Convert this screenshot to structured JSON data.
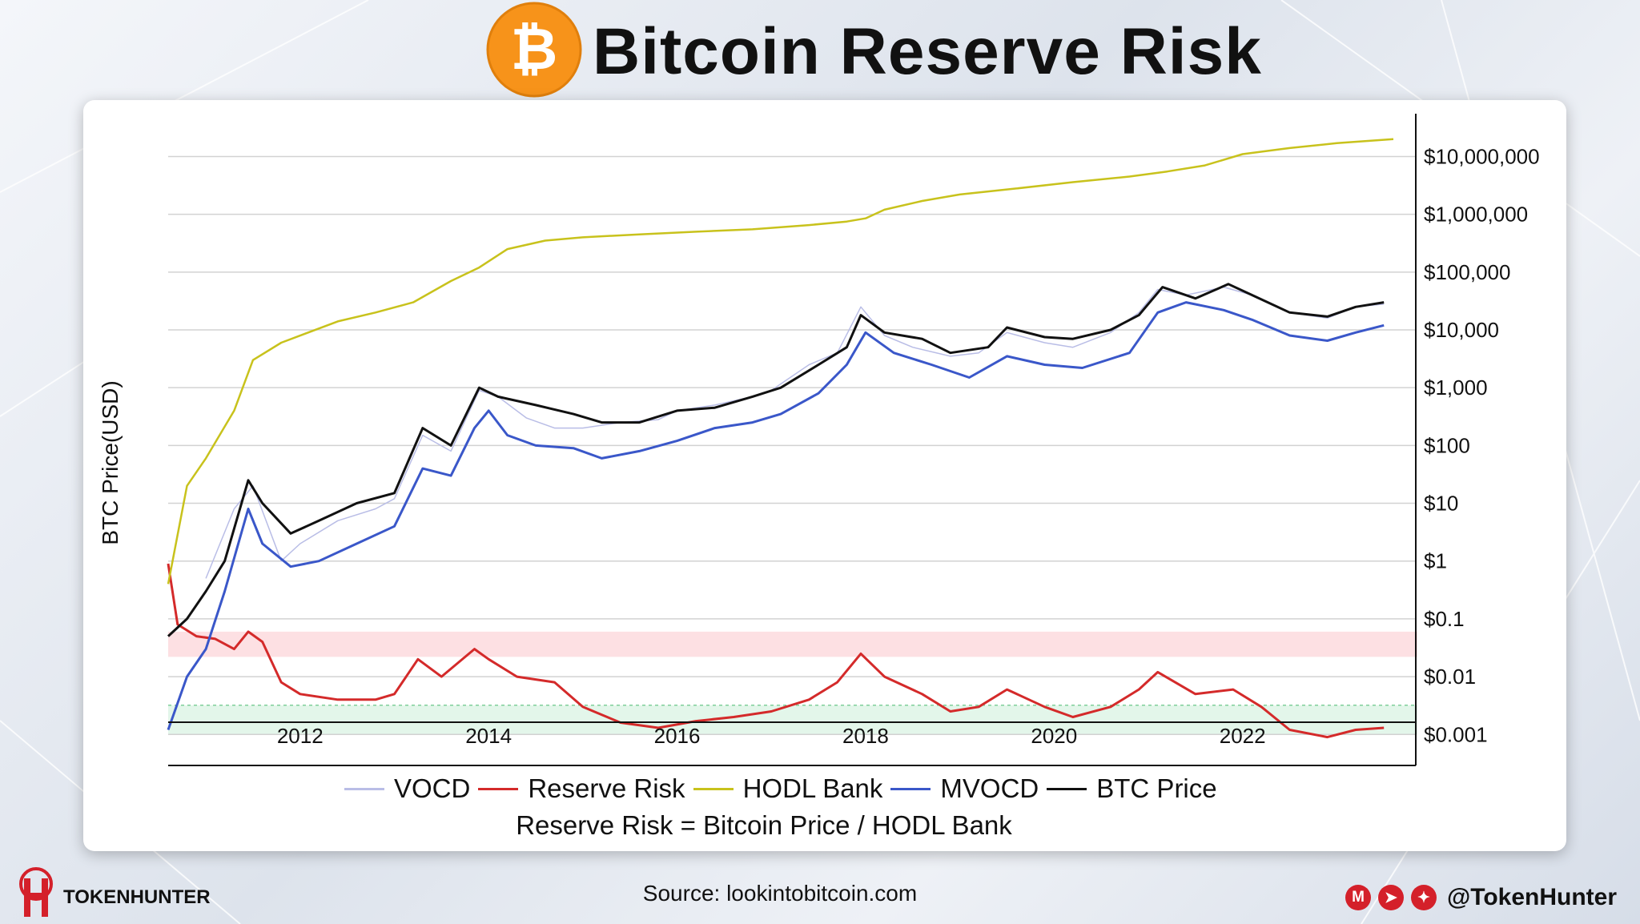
{
  "header": {
    "title": "Bitcoin Reserve Risk",
    "logo_icon": "bitcoin-icon",
    "logo_symbol": "₿"
  },
  "chart_data": {
    "type": "line",
    "ylabel": "BTC Price(USD)",
    "yscale": "log",
    "ylim": [
      0.0003,
      50000000
    ],
    "xlim": [
      2010.6,
      2023.6
    ],
    "y_ticks": [
      {
        "value": 10000000,
        "label": "$10,000,000"
      },
      {
        "value": 1000000,
        "label": "$1,000,000"
      },
      {
        "value": 100000,
        "label": "$100,000"
      },
      {
        "value": 10000,
        "label": "$10,000"
      },
      {
        "value": 1000,
        "label": "$1,000"
      },
      {
        "value": 100,
        "label": "$100"
      },
      {
        "value": 10,
        "label": "$10"
      },
      {
        "value": 1,
        "label": "$1"
      },
      {
        "value": 0.1,
        "label": "$0.1"
      },
      {
        "value": 0.01,
        "label": "$0.01"
      },
      {
        "value": 0.001,
        "label": "$0.001"
      }
    ],
    "x_ticks": [
      {
        "value": 2012,
        "label": "2012"
      },
      {
        "value": 2014,
        "label": "2014"
      },
      {
        "value": 2016,
        "label": "2016"
      },
      {
        "value": 2018,
        "label": "2018"
      },
      {
        "value": 2020,
        "label": "2020"
      },
      {
        "value": 2022,
        "label": "2022"
      }
    ],
    "bands": [
      {
        "name": "high-risk-zone",
        "from": 0.022,
        "to": 0.06,
        "color": "#fde0e3"
      },
      {
        "name": "low-risk-zone",
        "from": 0.001,
        "to": 0.0032,
        "color": "#e3f6ea"
      }
    ],
    "legend_position": "bottom",
    "series": [
      {
        "name": "VOCD",
        "color": "#b9bde6",
        "points": [
          [
            2011.0,
            0.5
          ],
          [
            2011.3,
            8
          ],
          [
            2011.5,
            20
          ],
          [
            2011.8,
            1
          ],
          [
            2012.0,
            2
          ],
          [
            2012.4,
            5
          ],
          [
            2012.8,
            8
          ],
          [
            2013.0,
            12
          ],
          [
            2013.3,
            150
          ],
          [
            2013.6,
            80
          ],
          [
            2013.9,
            900
          ],
          [
            2014.1,
            700
          ],
          [
            2014.4,
            300
          ],
          [
            2014.7,
            200
          ],
          [
            2015.0,
            200
          ],
          [
            2015.4,
            250
          ],
          [
            2015.8,
            280
          ],
          [
            2016.0,
            400
          ],
          [
            2016.4,
            500
          ],
          [
            2016.8,
            700
          ],
          [
            2017.0,
            900
          ],
          [
            2017.4,
            2500
          ],
          [
            2017.7,
            4000
          ],
          [
            2017.95,
            25000
          ],
          [
            2018.2,
            8000
          ],
          [
            2018.5,
            5000
          ],
          [
            2018.9,
            3500
          ],
          [
            2019.2,
            4000
          ],
          [
            2019.5,
            9000
          ],
          [
            2019.9,
            6000
          ],
          [
            2020.2,
            5000
          ],
          [
            2020.6,
            9000
          ],
          [
            2020.9,
            20000
          ],
          [
            2021.1,
            50000
          ],
          [
            2021.4,
            40000
          ],
          [
            2021.8,
            55000
          ],
          [
            2022.1,
            40000
          ],
          [
            2022.5,
            20000
          ],
          [
            2022.9,
            16000
          ],
          [
            2023.2,
            25000
          ],
          [
            2023.5,
            28000
          ]
        ]
      },
      {
        "name": "Reserve Risk",
        "color": "#d42a2a",
        "points": [
          [
            2010.6,
            0.9
          ],
          [
            2010.7,
            0.08
          ],
          [
            2010.9,
            0.05
          ],
          [
            2011.1,
            0.045
          ],
          [
            2011.3,
            0.03
          ],
          [
            2011.45,
            0.06
          ],
          [
            2011.6,
            0.04
          ],
          [
            2011.8,
            0.008
          ],
          [
            2012.0,
            0.005
          ],
          [
            2012.4,
            0.004
          ],
          [
            2012.8,
            0.004
          ],
          [
            2013.0,
            0.005
          ],
          [
            2013.25,
            0.02
          ],
          [
            2013.5,
            0.01
          ],
          [
            2013.85,
            0.03
          ],
          [
            2014.0,
            0.02
          ],
          [
            2014.3,
            0.01
          ],
          [
            2014.7,
            0.008
          ],
          [
            2015.0,
            0.003
          ],
          [
            2015.4,
            0.0016
          ],
          [
            2015.8,
            0.0013
          ],
          [
            2016.2,
            0.0017
          ],
          [
            2016.6,
            0.002
          ],
          [
            2017.0,
            0.0025
          ],
          [
            2017.4,
            0.004
          ],
          [
            2017.7,
            0.008
          ],
          [
            2017.95,
            0.025
          ],
          [
            2018.2,
            0.01
          ],
          [
            2018.6,
            0.005
          ],
          [
            2018.9,
            0.0025
          ],
          [
            2019.2,
            0.003
          ],
          [
            2019.5,
            0.006
          ],
          [
            2019.9,
            0.003
          ],
          [
            2020.2,
            0.002
          ],
          [
            2020.6,
            0.003
          ],
          [
            2020.9,
            0.006
          ],
          [
            2021.1,
            0.012
          ],
          [
            2021.5,
            0.005
          ],
          [
            2021.9,
            0.006
          ],
          [
            2022.2,
            0.003
          ],
          [
            2022.5,
            0.0012
          ],
          [
            2022.9,
            0.0009
          ],
          [
            2023.2,
            0.0012
          ],
          [
            2023.5,
            0.0013
          ]
        ]
      },
      {
        "name": "HODL Bank",
        "color": "#c8c21c",
        "points": [
          [
            2010.6,
            0.4
          ],
          [
            2010.8,
            20
          ],
          [
            2011.0,
            60
          ],
          [
            2011.3,
            400
          ],
          [
            2011.5,
            3000
          ],
          [
            2011.8,
            6000
          ],
          [
            2012.4,
            14000
          ],
          [
            2012.8,
            20000
          ],
          [
            2013.2,
            30000
          ],
          [
            2013.6,
            70000
          ],
          [
            2013.9,
            120000
          ],
          [
            2014.2,
            250000
          ],
          [
            2014.6,
            350000
          ],
          [
            2015.0,
            400000
          ],
          [
            2015.6,
            450000
          ],
          [
            2016.2,
            500000
          ],
          [
            2016.8,
            550000
          ],
          [
            2017.4,
            650000
          ],
          [
            2017.8,
            750000
          ],
          [
            2018.0,
            850000
          ],
          [
            2018.2,
            1200000
          ],
          [
            2018.6,
            1700000
          ],
          [
            2019.0,
            2200000
          ],
          [
            2019.6,
            2800000
          ],
          [
            2020.2,
            3600000
          ],
          [
            2020.8,
            4500000
          ],
          [
            2021.2,
            5500000
          ],
          [
            2021.6,
            7000000
          ],
          [
            2022.0,
            11000000
          ],
          [
            2022.5,
            14000000
          ],
          [
            2023.0,
            17000000
          ],
          [
            2023.6,
            20000000
          ]
        ]
      },
      {
        "name": "MVOCD",
        "color": "#3a57c9",
        "points": [
          [
            2010.6,
            0.0012
          ],
          [
            2010.8,
            0.01
          ],
          [
            2011.0,
            0.03
          ],
          [
            2011.2,
            0.3
          ],
          [
            2011.45,
            8
          ],
          [
            2011.6,
            2
          ],
          [
            2011.9,
            0.8
          ],
          [
            2012.2,
            1
          ],
          [
            2012.6,
            2
          ],
          [
            2013.0,
            4
          ],
          [
            2013.3,
            40
          ],
          [
            2013.6,
            30
          ],
          [
            2013.85,
            200
          ],
          [
            2014.0,
            400
          ],
          [
            2014.2,
            150
          ],
          [
            2014.5,
            100
          ],
          [
            2014.9,
            90
          ],
          [
            2015.2,
            60
          ],
          [
            2015.6,
            80
          ],
          [
            2016.0,
            120
          ],
          [
            2016.4,
            200
          ],
          [
            2016.8,
            250
          ],
          [
            2017.1,
            350
          ],
          [
            2017.5,
            800
          ],
          [
            2017.8,
            2500
          ],
          [
            2018.0,
            9000
          ],
          [
            2018.3,
            4000
          ],
          [
            2018.7,
            2500
          ],
          [
            2019.1,
            1500
          ],
          [
            2019.5,
            3500
          ],
          [
            2019.9,
            2500
          ],
          [
            2020.3,
            2200
          ],
          [
            2020.8,
            4000
          ],
          [
            2021.1,
            20000
          ],
          [
            2021.4,
            30000
          ],
          [
            2021.8,
            22000
          ],
          [
            2022.1,
            15000
          ],
          [
            2022.5,
            8000
          ],
          [
            2022.9,
            6500
          ],
          [
            2023.2,
            9000
          ],
          [
            2023.5,
            12000
          ]
        ]
      },
      {
        "name": "BTC Price",
        "color": "#111111",
        "points": [
          [
            2010.6,
            0.05
          ],
          [
            2010.8,
            0.1
          ],
          [
            2011.0,
            0.3
          ],
          [
            2011.2,
            1
          ],
          [
            2011.45,
            25
          ],
          [
            2011.6,
            10
          ],
          [
            2011.9,
            3
          ],
          [
            2012.2,
            5
          ],
          [
            2012.6,
            10
          ],
          [
            2013.0,
            15
          ],
          [
            2013.3,
            200
          ],
          [
            2013.6,
            100
          ],
          [
            2013.9,
            1000
          ],
          [
            2014.1,
            700
          ],
          [
            2014.5,
            500
          ],
          [
            2014.9,
            350
          ],
          [
            2015.2,
            250
          ],
          [
            2015.6,
            250
          ],
          [
            2016.0,
            400
          ],
          [
            2016.4,
            450
          ],
          [
            2016.8,
            700
          ],
          [
            2017.1,
            1000
          ],
          [
            2017.5,
            2500
          ],
          [
            2017.8,
            5000
          ],
          [
            2017.95,
            18000
          ],
          [
            2018.2,
            9000
          ],
          [
            2018.6,
            7000
          ],
          [
            2018.9,
            4000
          ],
          [
            2019.3,
            5000
          ],
          [
            2019.5,
            11000
          ],
          [
            2019.9,
            7500
          ],
          [
            2020.2,
            7000
          ],
          [
            2020.6,
            10000
          ],
          [
            2020.9,
            18000
          ],
          [
            2021.15,
            55000
          ],
          [
            2021.5,
            35000
          ],
          [
            2021.85,
            62000
          ],
          [
            2022.1,
            40000
          ],
          [
            2022.5,
            20000
          ],
          [
            2022.9,
            17000
          ],
          [
            2023.2,
            25000
          ],
          [
            2023.5,
            30000
          ]
        ]
      }
    ]
  },
  "legend": [
    {
      "label": "VOCD",
      "color": "#b9bde6"
    },
    {
      "label": "Reserve Risk",
      "color": "#d42a2a"
    },
    {
      "label": "HODL Bank",
      "color": "#c8c21c"
    },
    {
      "label": "MVOCD",
      "color": "#3a57c9"
    },
    {
      "label": "BTC Price",
      "color": "#111111"
    }
  ],
  "formula": "Reserve Risk = Bitcoin Price / HODL Bank",
  "footer": {
    "brand_left": "TOKEN",
    "brand_right": "HUNTER",
    "source": "Source: lookintobitcoin.com",
    "handle": "@TokenHunter",
    "socials": [
      {
        "icon": "medium-icon",
        "glyph": "M"
      },
      {
        "icon": "telegram-icon",
        "glyph": "➤"
      },
      {
        "icon": "twitter-icon",
        "glyph": "✦"
      }
    ]
  }
}
